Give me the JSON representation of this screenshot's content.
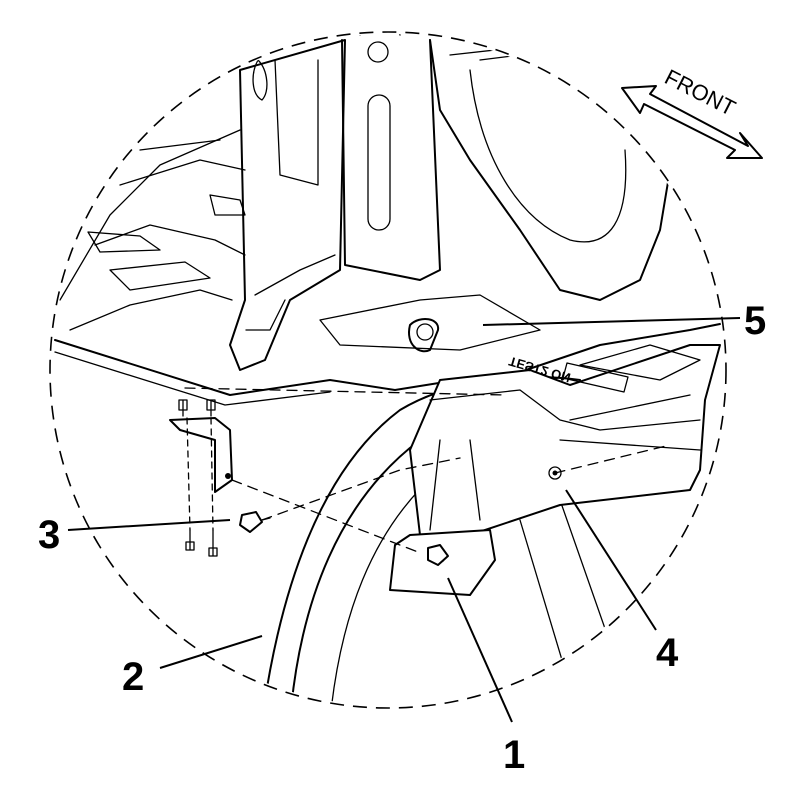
{
  "direction": {
    "label": "FRONT",
    "icon": "direction-arrow-icon"
  },
  "stamp": {
    "text": "TEST2 ON"
  },
  "callouts": [
    {
      "id": "1",
      "label": "1"
    },
    {
      "id": "2",
      "label": "2"
    },
    {
      "id": "3",
      "label": "3"
    },
    {
      "id": "4",
      "label": "4"
    },
    {
      "id": "5",
      "label": "5"
    }
  ]
}
